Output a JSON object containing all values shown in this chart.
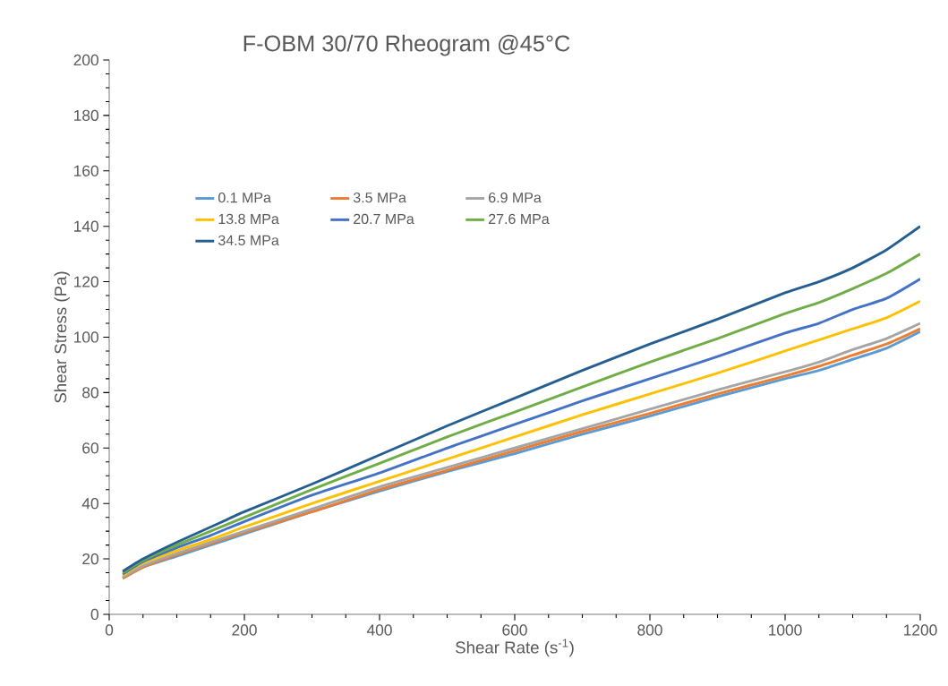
{
  "chart_data": {
    "type": "line",
    "title": "F-OBM 30/70 Rheogram @45°C",
    "xlabel": "Shear Rate (s$^{-1}$)",
    "ylabel": "Shear Stress (Pa)",
    "x": [
      20,
      50,
      100,
      150,
      200,
      300,
      400,
      500,
      600,
      700,
      800,
      900,
      1000,
      1050,
      1100,
      1150,
      1200
    ],
    "xlim": [
      0,
      1200
    ],
    "xticks": [
      0,
      200,
      400,
      600,
      800,
      1000,
      1200
    ],
    "ylim": [
      0,
      200
    ],
    "yticks": [
      0,
      20,
      40,
      60,
      80,
      100,
      120,
      140,
      160,
      180,
      200
    ],
    "grid": false,
    "legend": "top left",
    "marker": "none",
    "line_style": "solid",
    "series": [
      {
        "name": "0.1 MPa",
        "color": "#5b9bd5",
        "values": [
          13,
          17,
          21,
          25,
          29,
          37,
          44.5,
          51.5,
          58,
          65,
          71.5,
          78.5,
          85,
          88,
          92,
          96,
          102
        ]
      },
      {
        "name": "3.5 MPa",
        "color": "#ed7d31",
        "values": [
          13,
          17,
          21.5,
          25.5,
          29.5,
          37,
          45,
          52,
          59,
          66,
          72.5,
          79.5,
          86,
          89.5,
          93.5,
          97.5,
          103
        ]
      },
      {
        "name": "6.9 MPa",
        "color": "#a5a5a5",
        "values": [
          13.5,
          17.5,
          22,
          26,
          30,
          38,
          46,
          53,
          60,
          67,
          74,
          81,
          87.5,
          91,
          95.5,
          99.5,
          105
        ]
      },
      {
        "name": "13.8 MPa",
        "color": "#ffc000",
        "values": [
          14,
          18.5,
          23,
          27,
          31.5,
          40,
          48,
          56,
          64,
          72,
          79.5,
          87,
          95,
          99,
          103,
          107,
          113
        ]
      },
      {
        "name": "20.7 MPa",
        "color": "#4472c4",
        "values": [
          14.5,
          19,
          24,
          28.5,
          33.5,
          43,
          51,
          60,
          68.5,
          77,
          85,
          93,
          101.5,
          105,
          110,
          114,
          121
        ]
      },
      {
        "name": "27.6 MPa",
        "color": "#70ad47",
        "values": [
          15,
          19.5,
          25,
          30,
          35,
          45,
          54.5,
          64,
          73,
          82,
          91,
          99.5,
          108.5,
          112.5,
          117.5,
          123,
          130
        ]
      },
      {
        "name": "34.5 MPa",
        "color": "#255e91",
        "values": [
          15.5,
          20,
          26,
          31.5,
          37,
          47,
          57.5,
          68,
          78,
          88,
          97.5,
          106.5,
          116,
          120,
          125,
          131.5,
          140
        ]
      }
    ]
  }
}
